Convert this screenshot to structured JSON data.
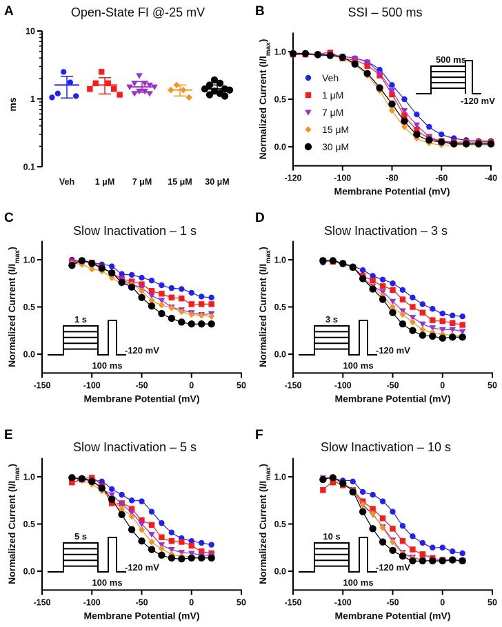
{
  "colors": {
    "Veh": "#1f1fff",
    "1 μM": "#ff1a1a",
    "7 μM": "#9c2fd6",
    "15 μM": "#f7941d",
    "30 μM": "#000000"
  },
  "markers": {
    "Veh": "circle",
    "1 μM": "square",
    "7 μM": "triangle-down",
    "15 μM": "diamond",
    "30 μM": "circle-large"
  },
  "chart_data": [
    {
      "panel": "A",
      "type": "scatter",
      "title": "Open-State FI @-25 mV",
      "ylabel": "ms",
      "yscale": "log",
      "ylim": [
        0.1,
        10
      ],
      "yticks": [
        "0.1",
        "1",
        "10"
      ],
      "categories": [
        "Veh",
        "1 μM",
        "7 μM",
        "15 μM",
        "30 μM"
      ],
      "groups": [
        {
          "name": "Veh",
          "points": [
            2.5,
            1.75,
            1.2,
            1.1,
            1.05
          ],
          "mean": 1.6,
          "sd_upper": 2.15,
          "sd_lower": 1.03
        },
        {
          "name": "1 μM",
          "points": [
            2.5,
            1.7,
            1.7,
            1.4,
            1.4,
            1.15
          ],
          "mean": 1.6,
          "sd_upper": 2.05,
          "sd_lower": 1.18
        },
        {
          "name": "7 μM",
          "points": [
            2.2,
            1.7,
            1.7,
            1.6,
            1.5,
            1.5,
            1.3,
            1.3,
            1.2,
            1.2
          ],
          "mean": 1.5,
          "sd_upper": 1.8,
          "sd_lower": 1.25
        },
        {
          "name": "15 μM",
          "points": [
            1.6,
            1.35,
            1.35,
            1.05
          ],
          "mean": 1.35,
          "sd_upper": 1.6,
          "sd_lower": 1.1
        },
        {
          "name": "30 μM",
          "points": [
            1.9,
            1.7,
            1.6,
            1.4,
            1.4,
            1.35,
            1.3,
            1.2,
            1.15,
            1.1
          ],
          "mean": 1.4,
          "sd_upper": 1.6,
          "sd_lower": 1.2
        }
      ]
    },
    {
      "panel": "B",
      "type": "line",
      "title": "SSI – 500 ms",
      "xlabel": "Membrane Potential (mV)",
      "ylabel": "Normalized Current (I/I",
      "ylabel_sub": "max",
      "ylabel_end": ")",
      "xlim": [
        -120,
        -40
      ],
      "ylim": [
        -0.2,
        1.2
      ],
      "xticks": [
        -120,
        -100,
        -80,
        -60,
        -40
      ],
      "yticks": [
        "0.0",
        "0.5",
        "1.0"
      ],
      "legend": "inside-left",
      "protocol": {
        "duration": "500 ms",
        "holding": "-120 mV"
      },
      "x": [
        -120,
        -115,
        -110,
        -105,
        -100,
        -95,
        -90,
        -85,
        -80,
        -75,
        -70,
        -65,
        -60,
        -55,
        -50,
        -45,
        -40
      ],
      "series": [
        {
          "name": "Veh",
          "values": [
            0.98,
            0.98,
            0.96,
            0.96,
            0.95,
            0.93,
            0.89,
            0.81,
            0.65,
            0.5,
            0.34,
            0.21,
            0.13,
            0.09,
            0.07,
            0.06,
            0.06
          ]
        },
        {
          "name": "1 μM",
          "values": [
            0.97,
            0.97,
            0.97,
            0.99,
            0.93,
            0.91,
            0.85,
            0.75,
            0.55,
            0.33,
            0.18,
            0.09,
            0.06,
            0.05,
            0.05,
            0.05,
            0.05
          ]
        },
        {
          "name": "7 μM",
          "values": [
            0.98,
            0.97,
            0.97,
            0.97,
            0.95,
            0.93,
            0.89,
            0.77,
            0.59,
            0.38,
            0.23,
            0.11,
            0.06,
            0.04,
            0.03,
            0.03,
            0.03
          ]
        },
        {
          "name": "15 μM",
          "values": [
            0.99,
            0.98,
            0.97,
            0.96,
            0.93,
            0.86,
            0.75,
            0.59,
            0.38,
            0.21,
            0.09,
            0.04,
            0.02,
            0.02,
            0.02,
            0.02,
            0.02
          ]
        },
        {
          "name": "30 μM",
          "values": [
            0.98,
            0.98,
            0.97,
            0.96,
            0.94,
            0.87,
            0.77,
            0.62,
            0.45,
            0.27,
            0.13,
            0.07,
            0.05,
            0.03,
            0.03,
            0.03,
            0.03
          ]
        }
      ]
    },
    {
      "panel": "C",
      "type": "line",
      "title": "Slow Inactivation – 1 s",
      "xlabel": "Membrane Potential (mV)",
      "ylabel": "Normalized Current (I/I",
      "ylabel_sub": "max",
      "ylabel_end": ")",
      "xlim": [
        -150,
        50
      ],
      "ylim": [
        -0.2,
        1.2
      ],
      "xticks": [
        -150,
        -100,
        -50,
        0,
        50
      ],
      "yticks": [
        "0.0",
        "0.5",
        "1.0"
      ],
      "protocol": {
        "duration": "1 s",
        "holding": "-120 mV",
        "gap": "100 ms"
      },
      "x": [
        -120,
        -110,
        -100,
        -90,
        -80,
        -70,
        -60,
        -50,
        -40,
        -30,
        -20,
        -10,
        0,
        10,
        20
      ],
      "series": [
        {
          "name": "Veh",
          "values": [
            1.0,
            0.98,
            0.97,
            0.95,
            0.93,
            0.85,
            0.84,
            0.81,
            0.78,
            0.73,
            0.7,
            0.69,
            0.65,
            0.61,
            0.6
          ]
        },
        {
          "name": "1 μM",
          "values": [
            0.98,
            0.99,
            0.97,
            0.92,
            0.86,
            0.8,
            0.77,
            0.74,
            0.67,
            0.64,
            0.6,
            0.59,
            0.53,
            0.53,
            0.53
          ]
        },
        {
          "name": "7 μM",
          "values": [
            0.97,
            0.98,
            0.96,
            0.91,
            0.86,
            0.79,
            0.74,
            0.7,
            0.62,
            0.57,
            0.5,
            0.47,
            0.44,
            0.42,
            0.43
          ]
        },
        {
          "name": "15 μM",
          "values": [
            0.96,
            0.95,
            0.9,
            0.88,
            0.81,
            0.75,
            0.74,
            0.67,
            0.57,
            0.52,
            0.49,
            0.45,
            0.42,
            0.41,
            0.4
          ]
        },
        {
          "name": "30 μM",
          "values": [
            0.94,
            0.99,
            0.96,
            0.91,
            0.86,
            0.76,
            0.71,
            0.6,
            0.51,
            0.43,
            0.38,
            0.34,
            0.32,
            0.32,
            0.32
          ]
        }
      ]
    },
    {
      "panel": "D",
      "type": "line",
      "title": "Slow Inactivation – 3 s",
      "xlabel": "Membrane Potential (mV)",
      "ylabel": "Normalized Current (I/I",
      "ylabel_sub": "max",
      "ylabel_end": ")",
      "xlim": [
        -150,
        50
      ],
      "ylim": [
        -0.2,
        1.2
      ],
      "xticks": [
        -150,
        -100,
        -50,
        0,
        50
      ],
      "yticks": [
        "0.0",
        "0.5",
        "1.0"
      ],
      "protocol": {
        "duration": "3 s",
        "holding": "-120 mV",
        "gap": "100 ms"
      },
      "x": [
        -120,
        -110,
        -100,
        -90,
        -80,
        -70,
        -60,
        -50,
        -40,
        -30,
        -20,
        -10,
        0,
        10,
        20
      ],
      "series": [
        {
          "name": "Veh",
          "values": [
            0.97,
            0.99,
            0.96,
            0.93,
            0.89,
            0.83,
            0.79,
            0.75,
            0.68,
            0.6,
            0.53,
            0.48,
            0.43,
            0.41,
            0.4
          ]
        },
        {
          "name": "1 μM",
          "values": [
            0.99,
            0.98,
            0.96,
            0.92,
            0.83,
            0.78,
            0.72,
            0.68,
            0.58,
            0.5,
            0.44,
            0.36,
            0.35,
            0.33,
            0.31
          ]
        },
        {
          "name": "7 μM",
          "values": [
            0.99,
            0.98,
            0.95,
            0.92,
            0.81,
            0.72,
            0.66,
            0.56,
            0.46,
            0.39,
            0.32,
            0.28,
            0.26,
            0.26,
            0.24
          ]
        },
        {
          "name": "15 μM",
          "values": [
            0.99,
            0.98,
            0.96,
            0.92,
            0.8,
            0.71,
            0.62,
            0.5,
            0.42,
            0.34,
            0.26,
            0.23,
            0.21,
            0.2,
            0.19
          ]
        },
        {
          "name": "30 μM",
          "values": [
            0.99,
            0.99,
            0.96,
            0.92,
            0.8,
            0.69,
            0.58,
            0.44,
            0.32,
            0.25,
            0.2,
            0.19,
            0.17,
            0.18,
            0.18
          ]
        }
      ]
    },
    {
      "panel": "E",
      "type": "line",
      "title": "Slow Inactivation – 5 s",
      "xlabel": "Membrane Potential (mV)",
      "ylabel": "Normalized Current (I/I",
      "ylabel_sub": "max",
      "ylabel_end": ")",
      "xlim": [
        -150,
        50
      ],
      "ylim": [
        -0.2,
        1.2
      ],
      "xticks": [
        -150,
        -100,
        -50,
        0,
        50
      ],
      "yticks": [
        "0.0",
        "0.5",
        "1.0"
      ],
      "protocol": {
        "duration": "5 s",
        "holding": "-120 mV",
        "gap": "100 ms"
      },
      "x": [
        -120,
        -110,
        -100,
        -90,
        -80,
        -70,
        -60,
        -50,
        -40,
        -30,
        -20,
        -10,
        0,
        10,
        20
      ],
      "series": [
        {
          "name": "Veh",
          "values": [
            0.98,
            0.97,
            0.96,
            0.95,
            0.87,
            0.81,
            0.75,
            0.74,
            0.63,
            0.51,
            0.41,
            0.35,
            0.32,
            0.3,
            0.28
          ]
        },
        {
          "name": "1 μM",
          "values": [
            0.94,
            0.97,
            0.99,
            0.9,
            0.72,
            0.72,
            0.66,
            0.54,
            0.49,
            0.36,
            0.32,
            0.31,
            0.27,
            0.21,
            0.19
          ]
        },
        {
          "name": "7 μM",
          "values": [
            0.98,
            0.98,
            0.96,
            0.87,
            0.81,
            0.71,
            0.62,
            0.5,
            0.39,
            0.28,
            0.23,
            0.2,
            0.19,
            0.17,
            0.17
          ]
        },
        {
          "name": "15 μM",
          "values": [
            0.98,
            0.96,
            0.92,
            0.85,
            0.76,
            0.66,
            0.58,
            0.44,
            0.31,
            0.24,
            0.18,
            0.16,
            0.15,
            0.14,
            0.15
          ]
        },
        {
          "name": "30 μM",
          "values": [
            0.99,
            0.98,
            0.95,
            0.88,
            0.76,
            0.6,
            0.44,
            0.32,
            0.23,
            0.17,
            0.14,
            0.13,
            0.14,
            0.14,
            0.14
          ]
        }
      ]
    },
    {
      "panel": "F",
      "type": "line",
      "title": "Slow Inactivation – 10 s",
      "xlabel": "Membrane Potential (mV)",
      "ylabel": "Normalized Current (I/I",
      "ylabel_sub": "max",
      "ylabel_end": ")",
      "xlim": [
        -150,
        50
      ],
      "ylim": [
        -0.2,
        1.2
      ],
      "xticks": [
        -150,
        -100,
        -50,
        0,
        50
      ],
      "yticks": [
        "0.0",
        "0.5",
        "1.0"
      ],
      "protocol": {
        "duration": "10 s",
        "holding": "-120 mV",
        "gap": "100 ms"
      },
      "x": [
        -120,
        -110,
        -100,
        -90,
        -80,
        -70,
        -60,
        -50,
        -40,
        -30,
        -20,
        -10,
        0,
        10,
        20
      ],
      "series": [
        {
          "name": "Veh",
          "values": [
            0.98,
            0.98,
            0.96,
            0.95,
            0.84,
            0.81,
            0.74,
            0.63,
            0.48,
            0.37,
            0.3,
            0.25,
            0.25,
            0.21,
            0.19
          ]
        },
        {
          "name": "1 μM",
          "values": [
            0.86,
            0.94,
            0.91,
            0.86,
            0.74,
            0.66,
            0.56,
            0.45,
            0.32,
            0.23,
            0.18,
            0.14,
            0.12,
            0.12,
            0.11
          ]
        },
        {
          "name": "7 μM",
          "values": [
            0.99,
            0.98,
            0.92,
            0.85,
            0.7,
            0.6,
            0.47,
            0.33,
            0.2,
            0.15,
            0.12,
            0.11,
            0.11,
            0.11,
            0.11
          ]
        },
        {
          "name": "15 μM",
          "values": [
            0.97,
            0.98,
            0.92,
            0.86,
            0.71,
            0.61,
            0.46,
            0.31,
            0.19,
            0.14,
            0.12,
            0.11,
            0.11,
            0.12,
            0.11
          ]
        },
        {
          "name": "30 μM",
          "values": [
            0.97,
            0.99,
            0.93,
            0.84,
            0.63,
            0.45,
            0.31,
            0.22,
            0.16,
            0.11,
            0.11,
            0.11,
            0.11,
            0.12,
            0.11
          ]
        }
      ]
    }
  ]
}
